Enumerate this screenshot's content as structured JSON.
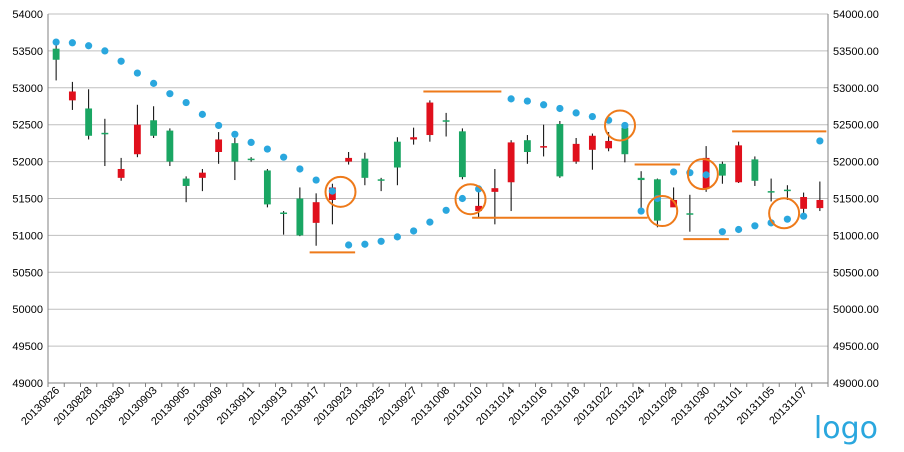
{
  "logo_text": "logo",
  "colors": {
    "up": "#1aa663",
    "down": "#e0101c",
    "wick": "#000000",
    "sar": "#2aa7de",
    "annotation": "#ee7a1a",
    "grid": "#bfbfbf"
  },
  "chart_data": {
    "type": "candlestick",
    "title": "",
    "xlabel": "",
    "ylabel": "",
    "ylim": [
      49000,
      54000
    ],
    "y_ticks_left": [
      "49000",
      "49500",
      "50000",
      "50500",
      "51000",
      "51500",
      "52000",
      "52500",
      "53000",
      "53500",
      "54000"
    ],
    "y_ticks_right": [
      "49000.00",
      "49500.00",
      "50000.00",
      "50500.00",
      "51000.00",
      "51500.00",
      "52000.00",
      "52500.00",
      "53000.00",
      "53500.00",
      "54000.00"
    ],
    "x_tick_labels": [
      "20130826",
      "20130828",
      "20130830",
      "20130903",
      "20130905",
      "20130909",
      "20130911",
      "20130913",
      "20130917",
      "20130923",
      "20130925",
      "20130927",
      "20131008",
      "20131010",
      "20131014",
      "20131016",
      "20131018",
      "20131022",
      "20131024",
      "20131028",
      "20131030",
      "20131101",
      "20131105",
      "20131107"
    ],
    "grid": "horizontal",
    "candles": [
      {
        "o": 53380,
        "h": 53620,
        "l": 53100,
        "c": 53530
      },
      {
        "o": 52950,
        "h": 53080,
        "l": 52700,
        "c": 52830
      },
      {
        "o": 52350,
        "h": 52980,
        "l": 52300,
        "c": 52720
      },
      {
        "o": 52380,
        "h": 52580,
        "l": 51940,
        "c": 52390
      },
      {
        "o": 51900,
        "h": 52050,
        "l": 51740,
        "c": 51780
      },
      {
        "o": 52500,
        "h": 52770,
        "l": 52060,
        "c": 52100
      },
      {
        "o": 52350,
        "h": 52750,
        "l": 52320,
        "c": 52560
      },
      {
        "o": 52000,
        "h": 52450,
        "l": 51940,
        "c": 52420
      },
      {
        "o": 51670,
        "h": 51800,
        "l": 51450,
        "c": 51770
      },
      {
        "o": 51850,
        "h": 51900,
        "l": 51600,
        "c": 51780
      },
      {
        "o": 52300,
        "h": 52400,
        "l": 51970,
        "c": 52130
      },
      {
        "o": 52000,
        "h": 52320,
        "l": 51750,
        "c": 52250
      },
      {
        "o": 52040,
        "h": 52060,
        "l": 52000,
        "c": 52040
      },
      {
        "o": 51420,
        "h": 51900,
        "l": 51380,
        "c": 51880
      },
      {
        "o": 51300,
        "h": 51330,
        "l": 51010,
        "c": 51310
      },
      {
        "o": 51000,
        "h": 51650,
        "l": 50990,
        "c": 51500
      },
      {
        "o": 51450,
        "h": 51570,
        "l": 50860,
        "c": 51170
      },
      {
        "o": 51650,
        "h": 51700,
        "l": 51150,
        "c": 51480
      },
      {
        "o": 52050,
        "h": 52130,
        "l": 51960,
        "c": 52000
      },
      {
        "o": 51780,
        "h": 52120,
        "l": 51680,
        "c": 52040
      },
      {
        "o": 51750,
        "h": 51780,
        "l": 51600,
        "c": 51760
      },
      {
        "o": 51920,
        "h": 52330,
        "l": 51680,
        "c": 52270
      },
      {
        "o": 52330,
        "h": 52460,
        "l": 52230,
        "c": 52300
      },
      {
        "o": 52800,
        "h": 52830,
        "l": 52270,
        "c": 52360
      },
      {
        "o": 52540,
        "h": 52660,
        "l": 52340,
        "c": 52560
      },
      {
        "o": 51790,
        "h": 52450,
        "l": 51760,
        "c": 52410
      },
      {
        "o": 51400,
        "h": 51640,
        "l": 51230,
        "c": 51330
      },
      {
        "o": 51640,
        "h": 51900,
        "l": 51150,
        "c": 51590
      },
      {
        "o": 52260,
        "h": 52290,
        "l": 51330,
        "c": 51720
      },
      {
        "o": 52130,
        "h": 52360,
        "l": 51970,
        "c": 52290
      },
      {
        "o": 52210,
        "h": 52500,
        "l": 52070,
        "c": 52200
      },
      {
        "o": 51800,
        "h": 52550,
        "l": 51780,
        "c": 52510
      },
      {
        "o": 52240,
        "h": 52320,
        "l": 51970,
        "c": 52000
      },
      {
        "o": 52350,
        "h": 52380,
        "l": 51890,
        "c": 52160
      },
      {
        "o": 52280,
        "h": 52400,
        "l": 52140,
        "c": 52180
      },
      {
        "o": 52100,
        "h": 52480,
        "l": 51990,
        "c": 52460
      },
      {
        "o": 51750,
        "h": 51870,
        "l": 51310,
        "c": 51780
      },
      {
        "o": 51200,
        "h": 51770,
        "l": 51110,
        "c": 51760
      },
      {
        "o": 51480,
        "h": 51650,
        "l": 51410,
        "c": 51380
      },
      {
        "o": 51300,
        "h": 51550,
        "l": 51050,
        "c": 51300
      },
      {
        "o": 52050,
        "h": 52210,
        "l": 51590,
        "c": 51640
      },
      {
        "o": 51810,
        "h": 52000,
        "l": 51700,
        "c": 51970
      },
      {
        "o": 52220,
        "h": 52270,
        "l": 51710,
        "c": 51720
      },
      {
        "o": 51740,
        "h": 52070,
        "l": 51670,
        "c": 52030
      },
      {
        "o": 51600,
        "h": 51770,
        "l": 51460,
        "c": 51600
      },
      {
        "o": 51620,
        "h": 51680,
        "l": 51480,
        "c": 51620
      },
      {
        "o": 51520,
        "h": 51580,
        "l": 51300,
        "c": 51360
      },
      {
        "o": 51480,
        "h": 51730,
        "l": 51330,
        "c": 51370
      }
    ],
    "sar": [
      53620,
      53610,
      53570,
      53500,
      53360,
      53200,
      53060,
      52920,
      52800,
      52640,
      52490,
      52370,
      52260,
      52170,
      52060,
      51900,
      51750,
      51600,
      50870,
      50880,
      50920,
      50980,
      51060,
      51180,
      51340,
      51500,
      51630,
      null,
      52850,
      52820,
      52770,
      52720,
      52660,
      52610,
      52560,
      52490,
      51330,
      51500,
      51860,
      51850,
      51820,
      51050,
      51080,
      51130,
      51170,
      51220,
      51260,
      52280
    ],
    "annotation_lines": [
      {
        "x1": 16,
        "x2": 18,
        "y": 50770
      },
      {
        "x1": 23,
        "x2": 27,
        "y": 52950
      },
      {
        "x1": 26,
        "x2": 36,
        "y": 51240
      },
      {
        "x1": 36,
        "x2": 38,
        "y": 51960
      },
      {
        "x1": 39,
        "x2": 41,
        "y": 50950
      },
      {
        "x1": 42,
        "x2": 47,
        "y": 52410
      }
    ],
    "annotation_circles": [
      {
        "x": 17.5,
        "y": 51590
      },
      {
        "x": 25.5,
        "y": 51490
      },
      {
        "x": 34.7,
        "y": 52490
      },
      {
        "x": 37.3,
        "y": 51330
      },
      {
        "x": 39.8,
        "y": 51830
      },
      {
        "x": 44.8,
        "y": 51300
      }
    ]
  }
}
